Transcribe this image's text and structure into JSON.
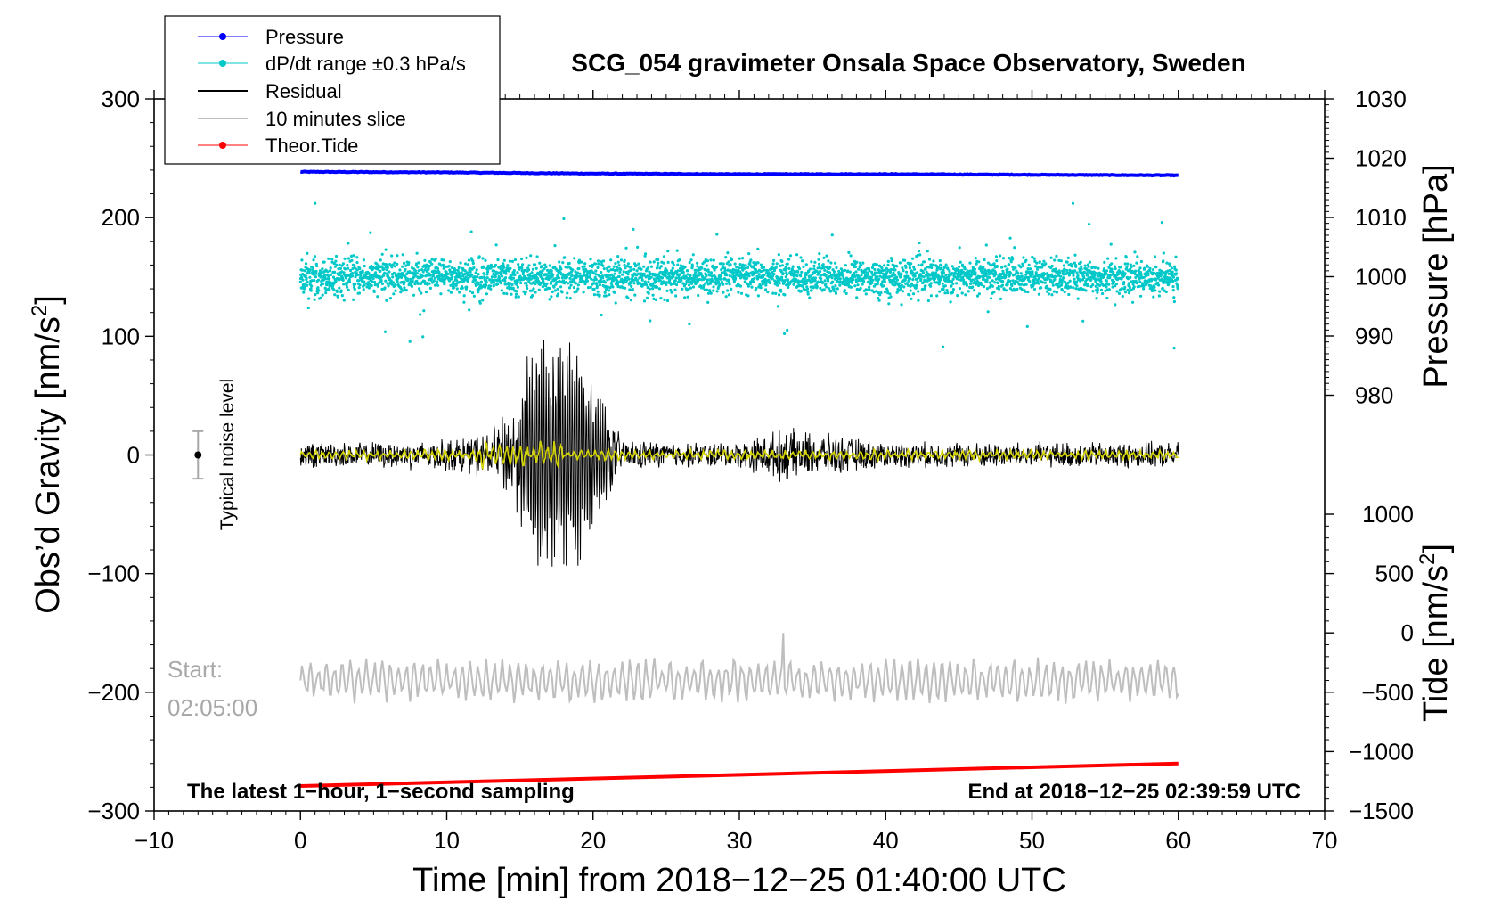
{
  "chart_data": {
    "type": "line",
    "title": "SCG_054 gravimeter Onsala Space Observatory, Sweden",
    "xlabel": "Time [min] from 2018−12−25 01:40:00 UTC",
    "ylabel_left": "Obs’d Gravity [nm/s",
    "ylabel_left_sup": "2",
    "ylabel_left_close": "]",
    "ylabel_right_pressure": "Pressure [hPa]",
    "ylabel_right_tide": "Tide [nm/s",
    "ylabel_right_tide_sup": "2",
    "ylabel_right_tide_close": "]",
    "xlim": [
      -10,
      70
    ],
    "ylim": [
      -300,
      300
    ],
    "pressure_lim": [
      980,
      1030
    ],
    "tide_lim": [
      -1500,
      1000
    ],
    "x_ticks": [
      -10,
      0,
      10,
      20,
      30,
      40,
      50,
      60,
      70
    ],
    "x_tick_labels": [
      "−10",
      "0",
      "10",
      "20",
      "30",
      "40",
      "50",
      "60",
      "70"
    ],
    "y_ticks": [
      -300,
      -200,
      -100,
      0,
      100,
      200,
      300
    ],
    "y_tick_labels": [
      "−300",
      "−200",
      "−100",
      "0",
      "100",
      "200",
      "300"
    ],
    "pressure_ticks": [
      980,
      990,
      1000,
      1010,
      1020,
      1030
    ],
    "pressure_tick_labels": [
      "980",
      "990",
      "1000",
      "1010",
      "1020",
      "1030"
    ],
    "tide_ticks": [
      -1500,
      -1000,
      -500,
      0,
      500,
      1000
    ],
    "tide_tick_labels": [
      "−1500",
      "−1000",
      "−500",
      "0",
      "500",
      "1000"
    ],
    "legend": [
      {
        "label": "Pressure",
        "color": "#0000ff",
        "marker": true
      },
      {
        "label": "dP/dt range ±0.3 hPa/s",
        "color": "#00c8c8",
        "marker": true
      },
      {
        "label": "Residual",
        "color": "#000000",
        "marker": false
      },
      {
        "label": "10 minutes slice",
        "color": "#bebebe",
        "marker": false
      },
      {
        "label": "Theor.Tide",
        "color": "#ff0000",
        "marker": true
      }
    ],
    "noise_label": "Typical noise level",
    "noise_level": {
      "x": -7,
      "center": 0,
      "half_range": 20
    },
    "slice_start_label": "Start:",
    "slice_start_time": "02:05:00",
    "bottom_left_note": "The latest 1−hour, 1−second sampling",
    "bottom_right_note": "End at 2018−12−25 02:39:59 UTC",
    "series": [
      {
        "name": "Pressure",
        "axis": "pressure",
        "color": "#0000ff",
        "x": [
          0,
          10,
          20,
          30,
          40,
          50,
          60
        ],
        "values": [
          1017.7,
          1017.6,
          1017.4,
          1017.3,
          1017.3,
          1017.2,
          1017.1
        ]
      },
      {
        "name": "dP/dt range ±0.3 hPa/s",
        "axis": "gravity",
        "color": "#00c8c8",
        "center": 150,
        "typical_spread": 10,
        "min": 90,
        "max": 212
      },
      {
        "name": "Residual",
        "axis": "gravity",
        "color": "#000000",
        "x": [
          0,
          5,
          10,
          13,
          15,
          16,
          17,
          18,
          19,
          20,
          22,
          25,
          30,
          33,
          40,
          50,
          60
        ],
        "envelope": [
          12,
          12,
          15,
          22,
          60,
          112,
          95,
          100,
          100,
          65,
          15,
          12,
          12,
          25,
          12,
          12,
          12
        ],
        "min": -126,
        "max": 112
      },
      {
        "name": "Filtered residual",
        "axis": "gravity",
        "color": "#d4d400",
        "level": 0,
        "amplitude": 5
      },
      {
        "name": "10 minutes slice",
        "axis": "gravity",
        "color": "#bebebe",
        "center": -190,
        "amplitude": 20,
        "min": -213,
        "max": -150,
        "x_range": [
          0,
          60
        ]
      },
      {
        "name": "Theor.Tide",
        "axis": "tide",
        "color": "#ff0000",
        "x": [
          0,
          60
        ],
        "values": [
          -1290,
          -1100
        ]
      }
    ]
  }
}
